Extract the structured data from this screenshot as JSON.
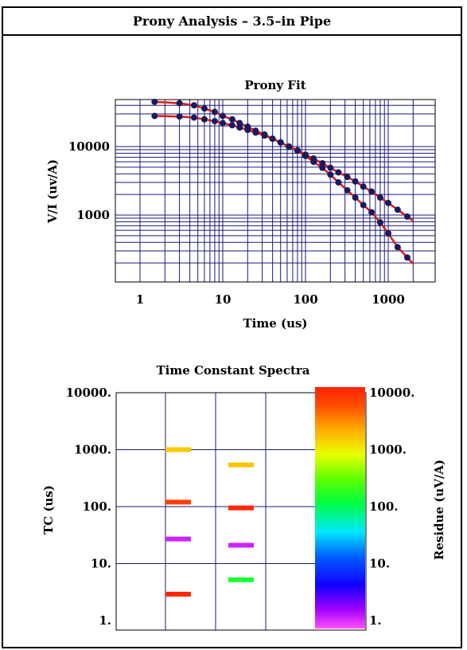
{
  "page": {
    "title": "Prony Analysis – 3.5–in Pipe"
  },
  "chart_data": [
    {
      "type": "scatter",
      "title": "Prony Fit",
      "xlabel": "Time (us)",
      "ylabel": "V/I (uv/A)",
      "x_scale": "log",
      "y_scale": "log",
      "xlim": [
        1,
        2000
      ],
      "ylim": [
        120,
        100000
      ],
      "xticks": [
        "1",
        "10",
        "100",
        "1000"
      ],
      "yticks": [
        "1000",
        "10000"
      ],
      "grid": true,
      "colors": {
        "points": "#1a1a5e",
        "fit": "#e01818",
        "grid": "#1a1a7a"
      },
      "series": [
        {
          "x": [
            1.5,
            3,
            4.5,
            6,
            8,
            10,
            13,
            16,
            20,
            25,
            32,
            40,
            50,
            63,
            80,
            100,
            125,
            160,
            200,
            250,
            320,
            400,
            500,
            630,
            800,
            1000,
            1300,
            1700
          ],
          "y": [
            45000,
            43000,
            40000,
            36000,
            32000,
            28000,
            25000,
            22000,
            19500,
            17000,
            15000,
            13000,
            11500,
            10000,
            8800,
            7600,
            6700,
            5700,
            4900,
            4200,
            3600,
            3100,
            2600,
            2200,
            1800,
            1500,
            1200,
            950
          ]
        },
        {
          "x": [
            1.5,
            3,
            4.5,
            6,
            8,
            10,
            13,
            16,
            20,
            25,
            32,
            40,
            50,
            63,
            80,
            100,
            125,
            160,
            200,
            250,
            320,
            400,
            500,
            630,
            800,
            1000,
            1300,
            1700
          ],
          "y": [
            28000,
            27500,
            26500,
            25000,
            23500,
            22000,
            20500,
            19000,
            17500,
            16000,
            14500,
            13000,
            11500,
            10000,
            8700,
            7300,
            6000,
            4900,
            3900,
            3000,
            2300,
            1800,
            1400,
            1100,
            780,
            540,
            340,
            240
          ]
        }
      ]
    },
    {
      "type": "heatmap",
      "title": "Time Constant Spectra",
      "ylabel": "TC (us)",
      "colorbar_label": "Residue (uV/A)",
      "y_scale": "log",
      "ylim": [
        1,
        10000
      ],
      "yticks": [
        "10000.",
        "1000.",
        "100.",
        "10.",
        "1."
      ],
      "colorbar_ticks": [
        "10000.",
        "1000.",
        "100.",
        "10.",
        "1."
      ],
      "grid": true,
      "columns": [
        {
          "bars": [
            {
              "tc": 1000,
              "residue": 1400
            },
            {
              "tc": 120,
              "residue": 6000
            },
            {
              "tc": 27,
              "residue": 1.5
            },
            {
              "tc": 2.9,
              "residue": 9000
            }
          ]
        },
        {
          "bars": [
            {
              "tc": 540,
              "residue": 1500
            },
            {
              "tc": 95,
              "residue": 9000
            },
            {
              "tc": 21,
              "residue": 1.5
            },
            {
              "tc": 5.2,
              "residue": 150
            }
          ]
        }
      ]
    }
  ]
}
